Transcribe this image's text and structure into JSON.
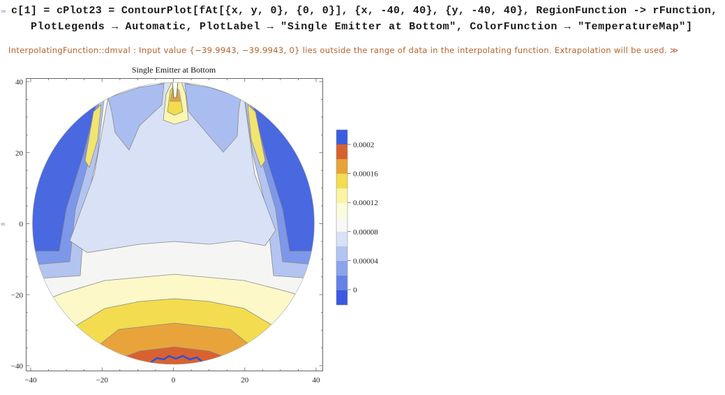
{
  "notebook": {
    "input_marker": "=",
    "code": {
      "lines": [
        "c[1] = cPlot23 = ContourPlot[fAt[{x, y, 0}, {0, 0}], {x, -40, 40}, {y, -40, 40}, RegionFunction -> rFunction,",
        "PlotLegends → Automatic, PlotLabel → \"Single Emitter at Bottom\", ColorFunction → \"TemperatureMap\"]"
      ]
    },
    "message": "InterpolatingFunction::dmval :  Input value {−39.9943, −39.9943, 0} lies outside the range of data in the interpolating function. Extrapolation will be used. ≫",
    "output_marker": "=",
    "plot": {
      "label": "Single Emitter at Bottom",
      "x_ticks": [
        "−40",
        "−20",
        "0",
        "20",
        "40"
      ],
      "y_ticks": [
        "40",
        "20",
        "0",
        "−20",
        "−40"
      ],
      "legend_labels": [
        "0.0002",
        "0.00016",
        "0.00012",
        "0.00008",
        "0.00004",
        "0"
      ]
    }
  }
}
